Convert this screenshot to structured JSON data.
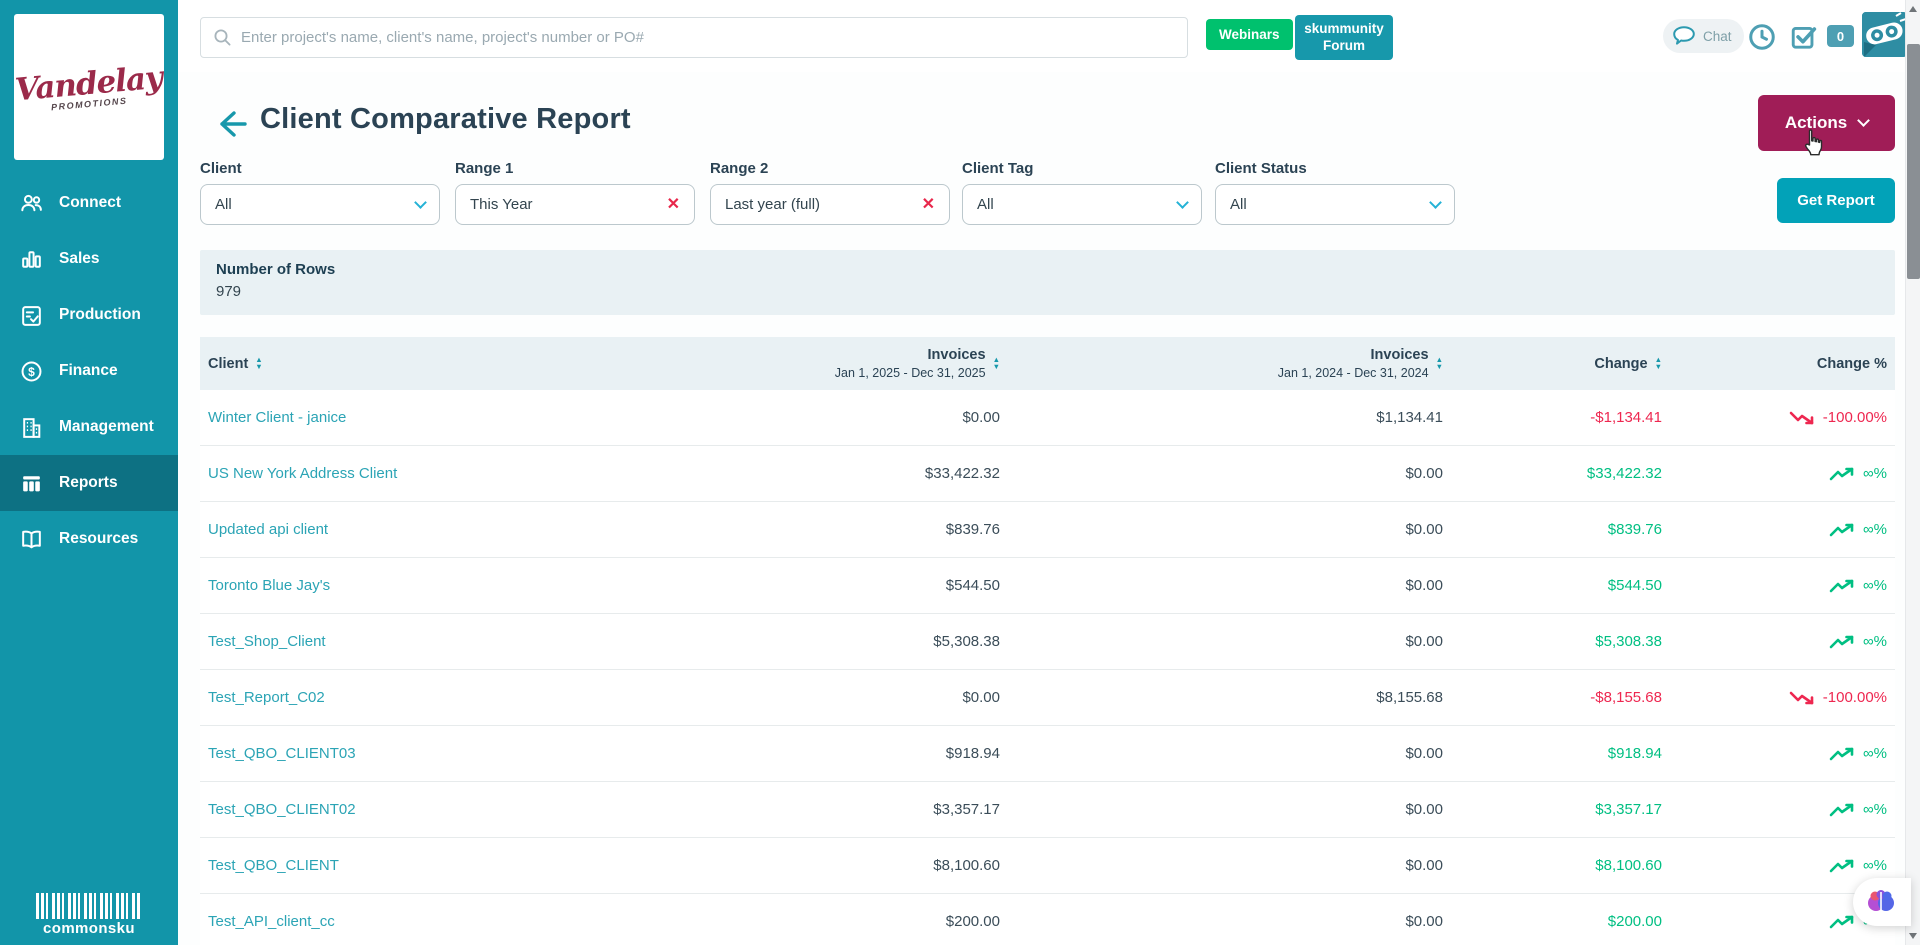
{
  "brand": {
    "logo_line1": "Vandelay",
    "logo_line2": "PROMOTIONS",
    "footer_logo": "commonsku"
  },
  "sidebar": {
    "items": [
      {
        "label": "Connect",
        "icon": "people",
        "active": false
      },
      {
        "label": "Sales",
        "icon": "bar-chart",
        "active": false
      },
      {
        "label": "Production",
        "icon": "clipboard-check",
        "active": false
      },
      {
        "label": "Finance",
        "icon": "dollar-circle",
        "active": false
      },
      {
        "label": "Management",
        "icon": "building",
        "active": false
      },
      {
        "label": "Reports",
        "icon": "report-columns",
        "active": true
      },
      {
        "label": "Resources",
        "icon": "open-book",
        "active": false
      }
    ]
  },
  "topbar": {
    "search_placeholder": "Enter project's name, client's name, project's number or PO#",
    "webinars_label": "Webinars",
    "forum_label": "skummunity Forum",
    "chat_label": "Chat",
    "notification_count": "0",
    "icons": [
      "chat-bubble",
      "clock",
      "tasks-checkbox"
    ]
  },
  "page": {
    "title": "Client Comparative Report",
    "actions_label": "Actions",
    "get_report_label": "Get Report"
  },
  "filters": [
    {
      "label": "Client",
      "value": "All",
      "control": "select"
    },
    {
      "label": "Range 1",
      "value": "This Year",
      "control": "clearable"
    },
    {
      "label": "Range 2",
      "value": "Last year (full)",
      "control": "clearable"
    },
    {
      "label": "Client Tag",
      "value": "All",
      "control": "select"
    },
    {
      "label": "Client Status",
      "value": "All",
      "control": "select"
    }
  ],
  "summary": {
    "label": "Number of Rows",
    "value": "979"
  },
  "table": {
    "columns": [
      {
        "label": "Client",
        "sublabel": "",
        "sortable": true
      },
      {
        "label": "Invoices",
        "sublabel": "Jan 1, 2025 - Dec 31, 2025",
        "sortable": true
      },
      {
        "label": "Invoices",
        "sublabel": "Jan 1, 2024 - Dec 31, 2024",
        "sortable": true
      },
      {
        "label": "Change",
        "sublabel": "",
        "sortable": true
      },
      {
        "label": "Change %",
        "sublabel": "",
        "sortable": false
      }
    ],
    "rows": [
      {
        "client": "Winter Client - janice",
        "invoices_range1": "$0.00",
        "invoices_range2": "$1,134.41",
        "change": "-$1,134.41",
        "change_pct": "-100.00%",
        "trend": "down"
      },
      {
        "client": "US New York Address Client",
        "invoices_range1": "$33,422.32",
        "invoices_range2": "$0.00",
        "change": "$33,422.32",
        "change_pct": "∞%",
        "trend": "up"
      },
      {
        "client": "Updated api client",
        "invoices_range1": "$839.76",
        "invoices_range2": "$0.00",
        "change": "$839.76",
        "change_pct": "∞%",
        "trend": "up"
      },
      {
        "client": "Toronto Blue Jay's",
        "invoices_range1": "$544.50",
        "invoices_range2": "$0.00",
        "change": "$544.50",
        "change_pct": "∞%",
        "trend": "up"
      },
      {
        "client": "Test_Shop_Client",
        "invoices_range1": "$5,308.38",
        "invoices_range2": "$0.00",
        "change": "$5,308.38",
        "change_pct": "∞%",
        "trend": "up"
      },
      {
        "client": "Test_Report_C02",
        "invoices_range1": "$0.00",
        "invoices_range2": "$8,155.68",
        "change": "-$8,155.68",
        "change_pct": "-100.00%",
        "trend": "down"
      },
      {
        "client": "Test_QBO_CLIENT03",
        "invoices_range1": "$918.94",
        "invoices_range2": "$0.00",
        "change": "$918.94",
        "change_pct": "∞%",
        "trend": "up"
      },
      {
        "client": "Test_QBO_CLIENT02",
        "invoices_range1": "$3,357.17",
        "invoices_range2": "$0.00",
        "change": "$3,357.17",
        "change_pct": "∞%",
        "trend": "up"
      },
      {
        "client": "Test_QBO_CLIENT",
        "invoices_range1": "$8,100.60",
        "invoices_range2": "$0.00",
        "change": "$8,100.60",
        "change_pct": "∞%",
        "trend": "up"
      },
      {
        "client": "Test_API_client_cc",
        "invoices_range1": "$200.00",
        "invoices_range2": "$0.00",
        "change": "$200.00",
        "change_pct": "∞%",
        "trend": "up"
      }
    ]
  },
  "colors": {
    "sidebar_teal": "#1295a9",
    "sidebar_active": "#0d7183",
    "button_magenta": "#a01d57",
    "button_teal": "#02a2b8",
    "webinars_green": "#00c16e",
    "link_teal": "#2ba4b5",
    "positive_green": "#00bf82",
    "negative_red": "#ee2750",
    "panel_bg": "#e9f1f4",
    "heading_slate": "#2b4354"
  }
}
